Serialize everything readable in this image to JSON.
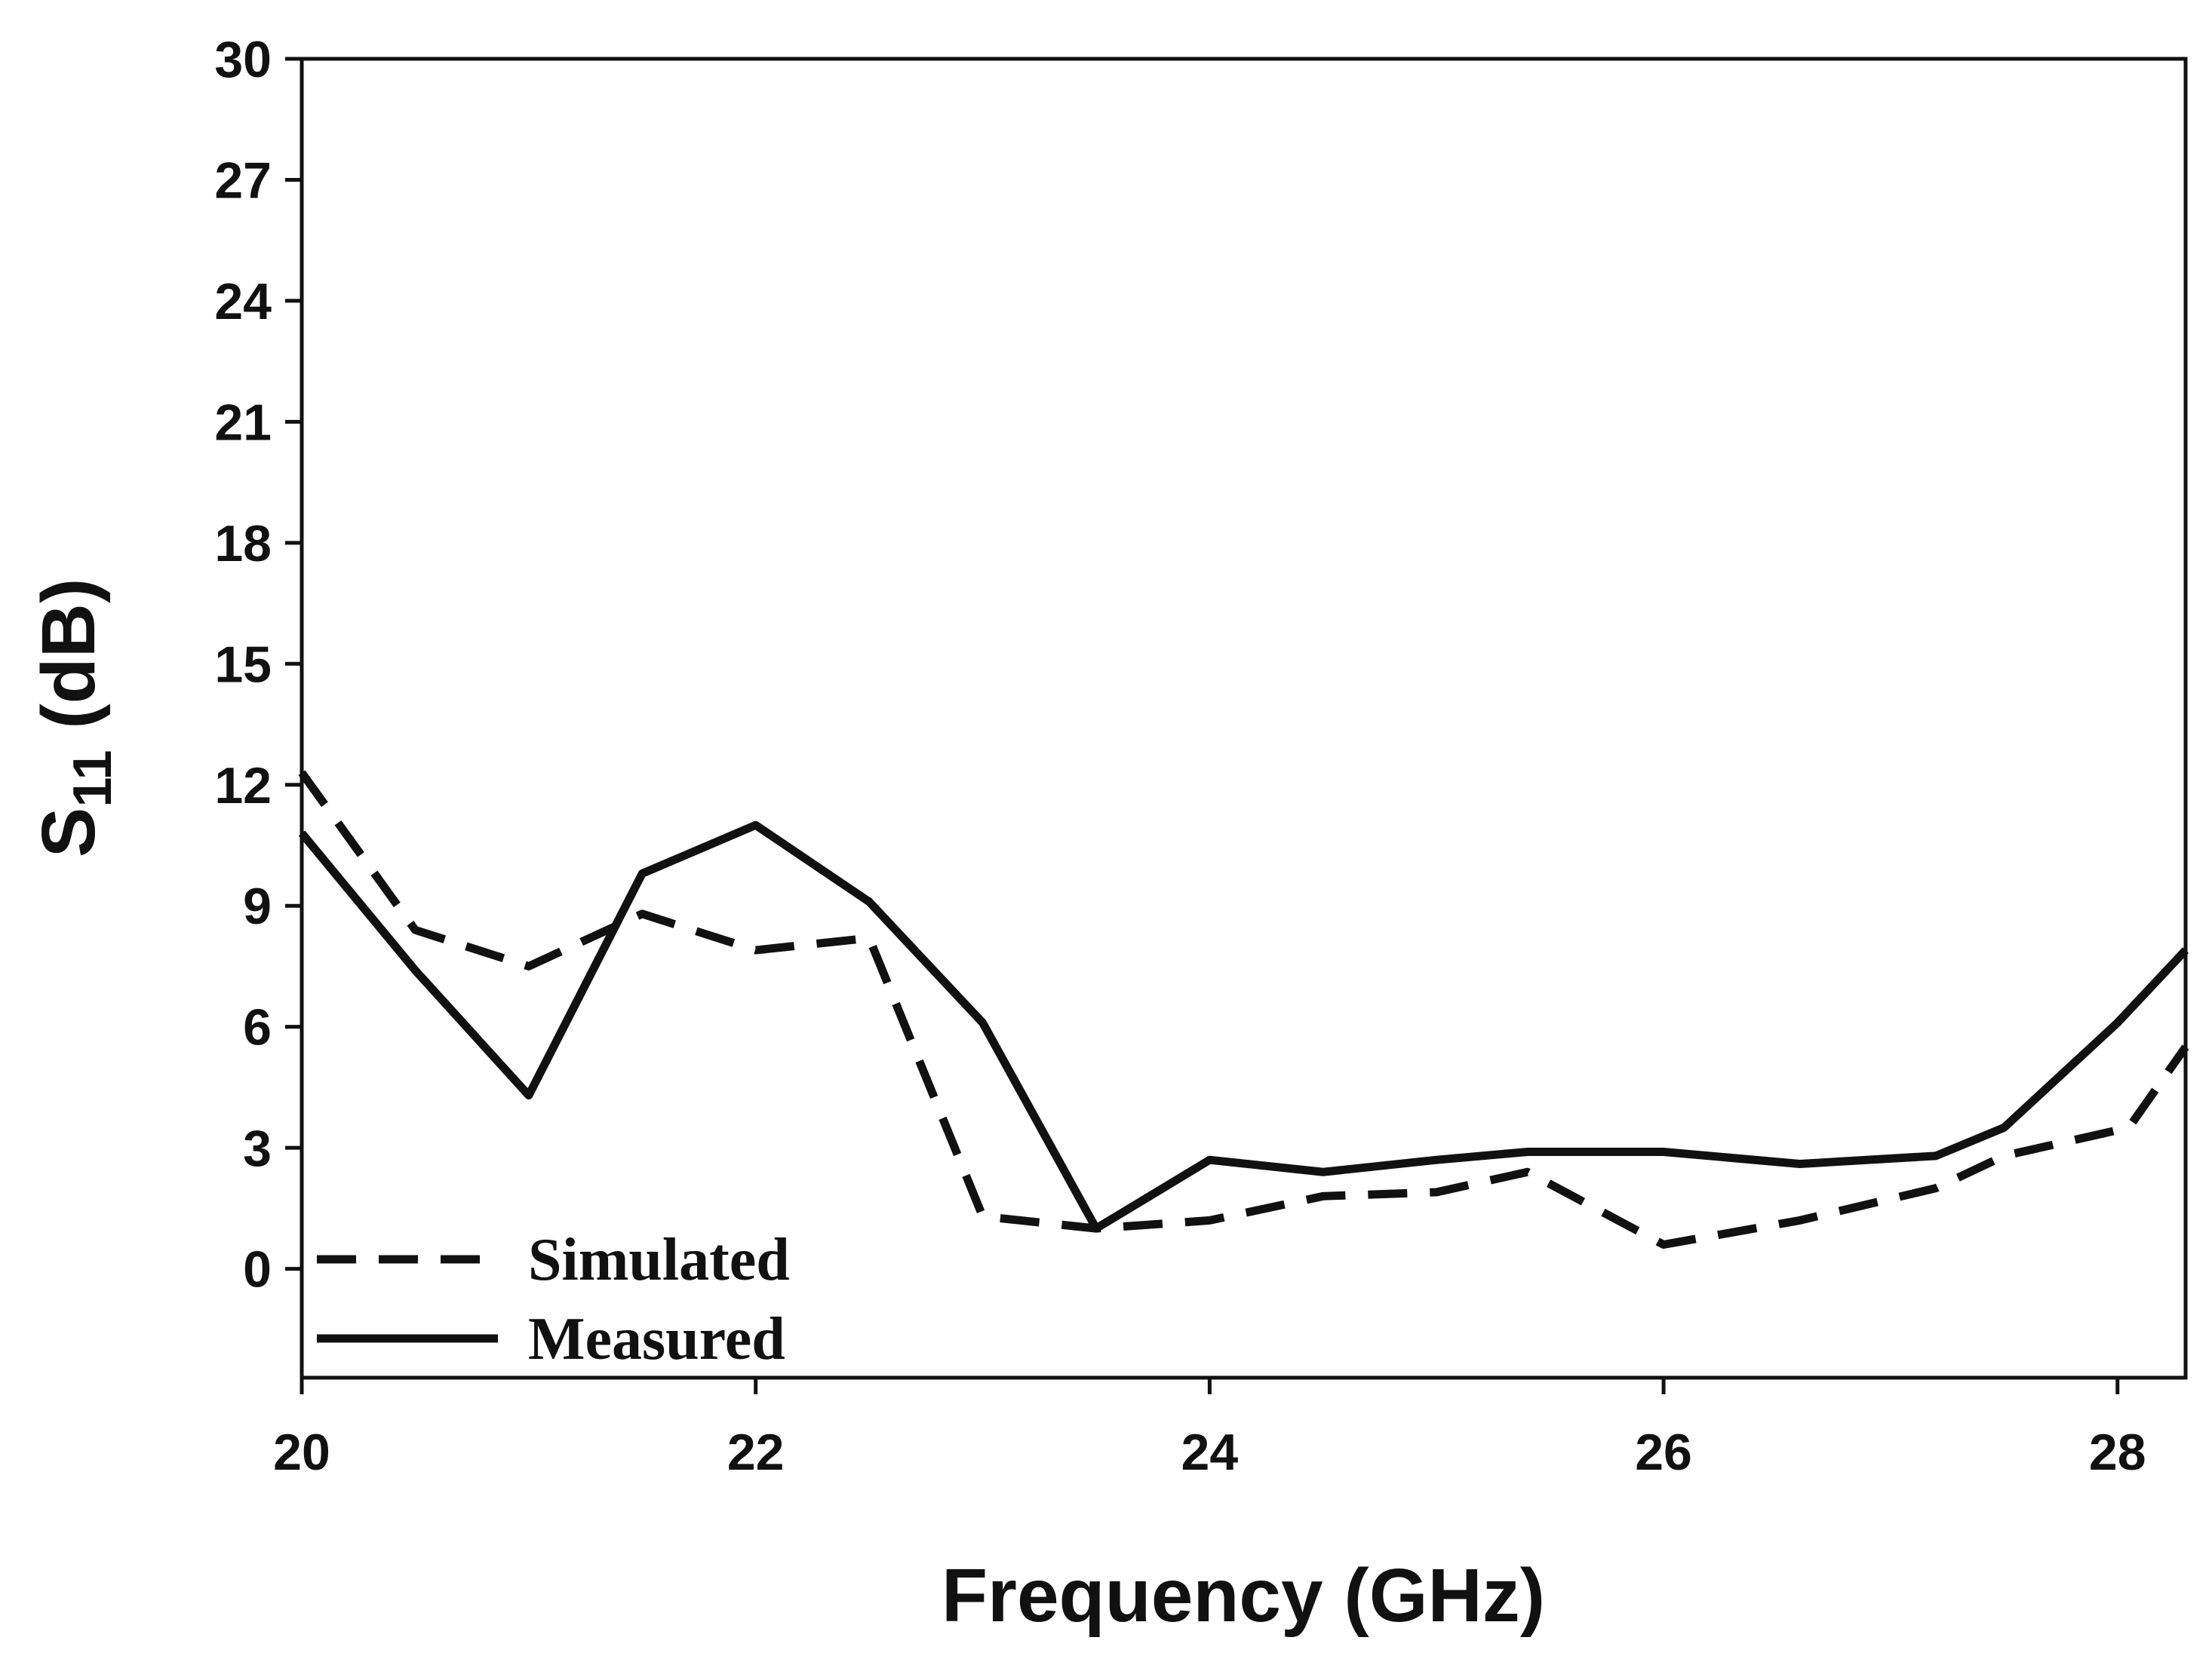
{
  "chart_data": {
    "type": "line",
    "title": "",
    "xlabel": "Frequency (GHz)",
    "ylabel_main": "S",
    "ylabel_sub": "11",
    "ylabel_unit": " (dB)",
    "xlim": [
      20,
      28.3
    ],
    "ylim": [
      -2.7,
      30
    ],
    "x_ticks": [
      20,
      22,
      24,
      26,
      28
    ],
    "x_tick_labels": [
      "20",
      "22",
      "24",
      "26",
      "28"
    ],
    "y_ticks": [
      0,
      3,
      6,
      9,
      12,
      15,
      18,
      21,
      24,
      27,
      30
    ],
    "y_tick_labels": [
      "0",
      "3",
      "6",
      "9",
      "12",
      "15",
      "18",
      "21",
      "24",
      "27",
      "30"
    ],
    "grid": false,
    "legend_position": "bottom-left",
    "series": [
      {
        "name": "Simulated",
        "style": "dashed",
        "color": "#111111",
        "x": [
          20,
          20.5,
          21,
          21.5,
          22,
          22.5,
          23,
          23.5,
          24,
          24.5,
          25,
          25.4,
          26,
          26.6,
          27.2,
          27.5,
          28.05,
          28.3
        ],
        "y": [
          12.3,
          8.4,
          7.5,
          8.8,
          7.9,
          8.2,
          1.3,
          1.0,
          1.2,
          1.8,
          1.9,
          2.4,
          0.6,
          1.2,
          2.0,
          2.8,
          3.5,
          5.5
        ]
      },
      {
        "name": "Measured",
        "style": "solid",
        "color": "#111111",
        "x": [
          20,
          20.5,
          21,
          21.5,
          22,
          22.5,
          23,
          23.5,
          24,
          24.5,
          25,
          25.4,
          26,
          26.6,
          27.2,
          27.5,
          28.0,
          28.3
        ],
        "y": [
          10.8,
          7.4,
          4.3,
          9.8,
          11.0,
          9.1,
          6.1,
          1.0,
          2.7,
          2.4,
          2.7,
          2.9,
          2.9,
          2.6,
          2.8,
          3.5,
          6.1,
          7.9
        ]
      }
    ]
  }
}
